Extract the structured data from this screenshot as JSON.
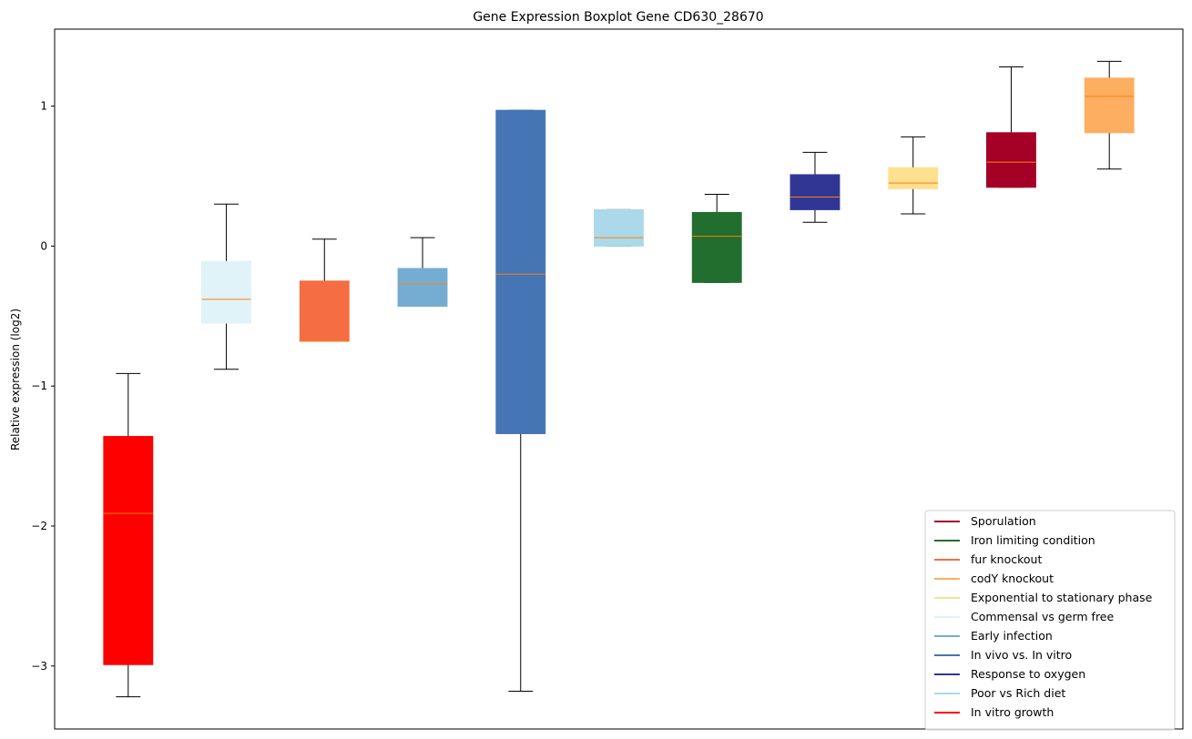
{
  "chart_data": {
    "type": "boxplot",
    "title": "Gene Expression Boxplot Gene CD630_28670",
    "xlabel": "",
    "ylabel": "Relative expression (log2)",
    "ylim": [
      -3.45,
      1.55
    ],
    "yticks": [
      -3,
      -2,
      -1,
      0,
      1
    ],
    "ytick_labels": [
      "−3",
      "−2",
      "−1",
      "0",
      "1"
    ],
    "legend_position": "lower-right",
    "median_color": "#ff7f0e",
    "boxes": [
      {
        "name": "In vitro growth",
        "color": "#ff0000",
        "whisker_low": -3.22,
        "q1": -2.99,
        "median": -1.91,
        "q3": -1.36,
        "whisker_high": -0.91
      },
      {
        "name": "Commensal vs germ free",
        "color": "#e0f3f8",
        "whisker_low": -0.88,
        "q1": -0.55,
        "median": -0.38,
        "q3": -0.11,
        "whisker_high": 0.3
      },
      {
        "name": "fur knockout",
        "color": "#f46d43",
        "whisker_low": -0.68,
        "q1": -0.68,
        "median": -0.68,
        "q3": -0.25,
        "whisker_high": 0.05
      },
      {
        "name": "Early infection",
        "color": "#74add1",
        "whisker_low": -0.43,
        "q1": -0.43,
        "median": -0.27,
        "q3": -0.16,
        "whisker_high": 0.06
      },
      {
        "name": "In vivo vs. In vitro",
        "color": "#4575b4",
        "whisker_low": -3.18,
        "q1": -1.34,
        "median": -0.2,
        "q3": 0.97,
        "whisker_high": 0.97
      },
      {
        "name": "Poor vs Rich diet",
        "color": "#abd9e9",
        "whisker_low": 0.0,
        "q1": 0.0,
        "median": 0.06,
        "q3": 0.26,
        "whisker_high": 0.26
      },
      {
        "name": "Iron limiting condition",
        "color": "#216e2e",
        "whisker_low": -0.26,
        "q1": -0.26,
        "median": 0.07,
        "q3": 0.24,
        "whisker_high": 0.37
      },
      {
        "name": "Response to oxygen",
        "color": "#313695",
        "whisker_low": 0.17,
        "q1": 0.26,
        "median": 0.35,
        "q3": 0.51,
        "whisker_high": 0.67
      },
      {
        "name": "Exponential to stationary phase",
        "color": "#fee090",
        "whisker_low": 0.23,
        "q1": 0.41,
        "median": 0.45,
        "q3": 0.56,
        "whisker_high": 0.78
      },
      {
        "name": "Sporulation",
        "color": "#a50026",
        "whisker_low": 0.42,
        "q1": 0.42,
        "median": 0.6,
        "q3": 0.81,
        "whisker_high": 1.28
      },
      {
        "name": "codY knockout",
        "color": "#fdae61",
        "whisker_low": 0.55,
        "q1": 0.81,
        "median": 1.07,
        "q3": 1.2,
        "whisker_high": 1.32
      }
    ],
    "legend": [
      {
        "label": "Sporulation",
        "color": "#a50026"
      },
      {
        "label": "Iron limiting condition",
        "color": "#216e2e"
      },
      {
        "label": "fur knockout",
        "color": "#f46d43"
      },
      {
        "label": "codY knockout",
        "color": "#fdae61"
      },
      {
        "label": "Exponential to stationary phase",
        "color": "#fee090"
      },
      {
        "label": "Commensal vs germ free",
        "color": "#e0f3f8"
      },
      {
        "label": "Early infection",
        "color": "#74add1"
      },
      {
        "label": "In vivo vs. In vitro",
        "color": "#4575b4"
      },
      {
        "label": "Response to oxygen",
        "color": "#313695"
      },
      {
        "label": "Poor vs Rich diet",
        "color": "#abd9e9"
      },
      {
        "label": "In vitro growth",
        "color": "#ff0000"
      }
    ]
  }
}
